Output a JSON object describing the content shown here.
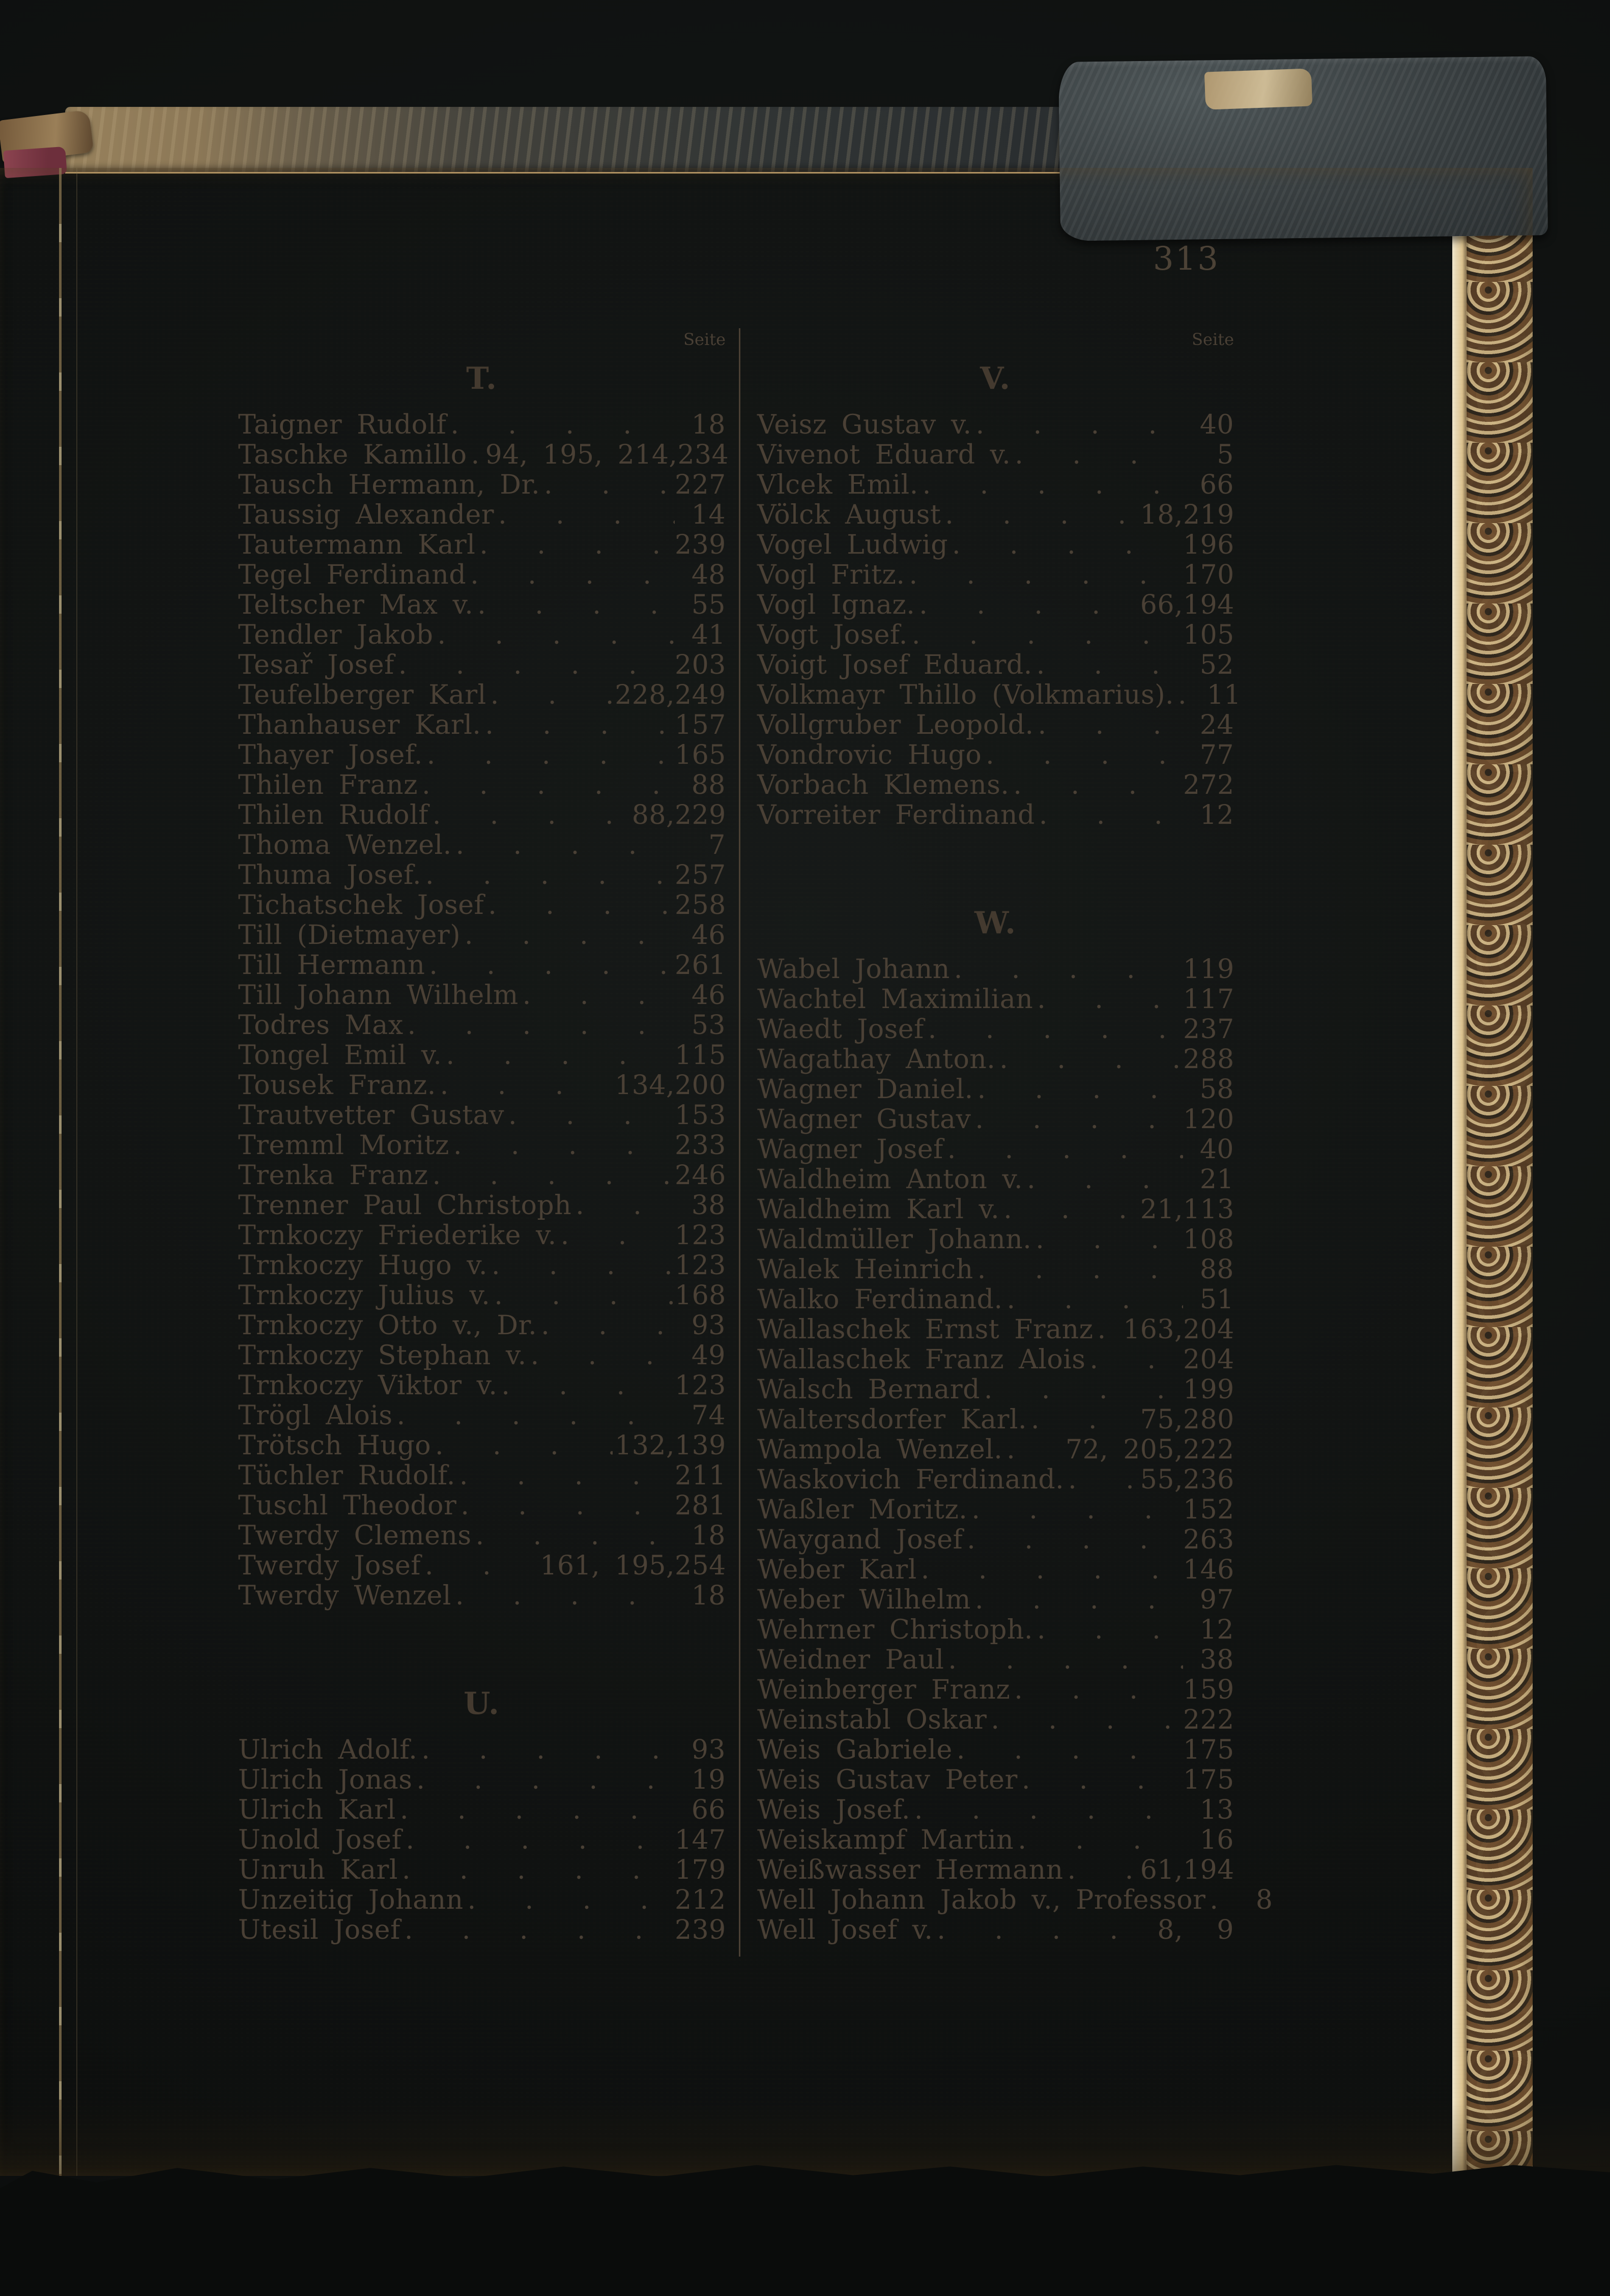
{
  "page": {
    "number": "313"
  },
  "labels": {
    "seite": "Seite"
  },
  "colors": {
    "ink": "#4a4035",
    "paper": "#e8dfc2",
    "paper_edge": "#f0e9d5",
    "cover_leather": "#2c3133",
    "marble_brown": "#8a6b47",
    "backdrop": "#121514"
  },
  "columns": [
    {
      "sections": [
        {
          "letter": "T.",
          "entries": [
            {
              "name": "Taigner Rudolf",
              "page": "18"
            },
            {
              "name": "Taschke Kamillo",
              "mid": "94, 195, 214,",
              "page": "234"
            },
            {
              "name": "Tausch Hermann, Dr.",
              "page": "227"
            },
            {
              "name": "Taussig Alexander",
              "page": "14"
            },
            {
              "name": "Tautermann Karl",
              "page": "239"
            },
            {
              "name": "Tegel Ferdinand",
              "page": "48"
            },
            {
              "name": "Teltscher Max v.",
              "page": "55"
            },
            {
              "name": "Tendler Jakob",
              "page": "41"
            },
            {
              "name": "Tesař Josef",
              "page": "203"
            },
            {
              "name": "Teufelberger Karl",
              "mid": "228,",
              "page": "249"
            },
            {
              "name": "Thanhauser Karl.",
              "page": "157"
            },
            {
              "name": "Thayer Josef.",
              "page": "165"
            },
            {
              "name": "Thilen Franz",
              "page": "88"
            },
            {
              "name": "Thilen Rudolf",
              "mid": "88,",
              "page": "229"
            },
            {
              "name": "Thoma Wenzel.",
              "page": "7"
            },
            {
              "name": "Thuma Josef.",
              "page": "257"
            },
            {
              "name": "Tichatschek Josef",
              "page": "258"
            },
            {
              "name": "Till (Dietmayer)",
              "page": "46"
            },
            {
              "name": "Till Hermann",
              "page": "261"
            },
            {
              "name": "Till Johann Wilhelm",
              "page": "46"
            },
            {
              "name": "Todres Max",
              "page": "53"
            },
            {
              "name": "Tongel Emil v.",
              "page": "115"
            },
            {
              "name": "Tousek Franz.",
              "mid": "134,",
              "page": "200"
            },
            {
              "name": "Trautvetter Gustav",
              "page": "153"
            },
            {
              "name": "Tremml Moritz",
              "page": "233"
            },
            {
              "name": "Trenka Franz",
              "page": "246"
            },
            {
              "name": "Trenner Paul Christoph",
              "page": "38"
            },
            {
              "name": "Trnkoczy Friederike v.",
              "page": "123"
            },
            {
              "name": "Trnkoczy Hugo v.",
              "page": "123"
            },
            {
              "name": "Trnkoczy Julius v.",
              "page": "168"
            },
            {
              "name": "Trnkoczy Otto v., Dr.",
              "page": "93"
            },
            {
              "name": "Trnkoczy Stephan v.",
              "page": "49"
            },
            {
              "name": "Trnkoczy Viktor v.",
              "page": "123"
            },
            {
              "name": "Trögl Alois",
              "page": "74"
            },
            {
              "name": "Trötsch Hugo",
              "mid": "132,",
              "page": "139"
            },
            {
              "name": "Tüchler Rudolf.",
              "page": "211"
            },
            {
              "name": "Tuschl Theodor",
              "page": "281"
            },
            {
              "name": "Twerdy Clemens",
              "page": "18"
            },
            {
              "name": "Twerdy Josef",
              "mid": "161, 195,",
              "page": "254"
            },
            {
              "name": "Twerdy Wenzel",
              "page": "18"
            }
          ]
        },
        {
          "letter": "U.",
          "entries": [
            {
              "name": "Ulrich Adolf.",
              "page": "93"
            },
            {
              "name": "Ulrich Jonas",
              "page": "19"
            },
            {
              "name": "Ulrich Karl",
              "page": "66"
            },
            {
              "name": "Unold Josef",
              "page": "147"
            },
            {
              "name": "Unruh Karl",
              "page": "179"
            },
            {
              "name": "Unzeitig Johann",
              "page": "212"
            },
            {
              "name": "Utesil Josef",
              "page": "239"
            }
          ]
        }
      ]
    },
    {
      "sections": [
        {
          "letter": "V.",
          "entries": [
            {
              "name": "Veisz Gustav v.",
              "page": "40"
            },
            {
              "name": "Vivenot Eduard v.",
              "page": "5"
            },
            {
              "name": "Vlcek Emil.",
              "page": "66"
            },
            {
              "name": "Völck August",
              "mid": "18,",
              "page": "219"
            },
            {
              "name": "Vogel Ludwig",
              "page": "196"
            },
            {
              "name": "Vogl Fritz.",
              "page": "170"
            },
            {
              "name": "Vogl Ignaz.",
              "mid": "66,",
              "page": "194"
            },
            {
              "name": "Vogt Josef.",
              "page": "105"
            },
            {
              "name": "Voigt Josef Eduard.",
              "page": "52"
            },
            {
              "name": "Volkmayr Thillo (Volkmarius).",
              "page": "11"
            },
            {
              "name": "Vollgruber Leopold.",
              "page": "24"
            },
            {
              "name": "Vondrovic Hugo",
              "page": "77"
            },
            {
              "name": "Vorbach Klemens.",
              "page": "272"
            },
            {
              "name": "Vorreiter Ferdinand",
              "page": "12"
            }
          ]
        },
        {
          "letter": "W.",
          "entries": [
            {
              "name": "Wabel Johann",
              "page": "119"
            },
            {
              "name": "Wachtel Maximilian",
              "page": "117"
            },
            {
              "name": "Waedt Josef",
              "page": "237"
            },
            {
              "name": "Wagathay Anton.",
              "page": "288"
            },
            {
              "name": "Wagner Daniel.",
              "page": "58"
            },
            {
              "name": "Wagner Gustav",
              "page": "120"
            },
            {
              "name": "Wagner Josef",
              "page": "40"
            },
            {
              "name": "Waldheim Anton v.",
              "page": "21"
            },
            {
              "name": "Waldheim Karl v.",
              "mid": "21,",
              "page": "113"
            },
            {
              "name": "Waldmüller Johann.",
              "page": "108"
            },
            {
              "name": "Walek Heinrich",
              "page": "88"
            },
            {
              "name": "Walko Ferdinand.",
              "page": "51"
            },
            {
              "name": "Wallaschek Ernst Franz",
              "mid": "163,",
              "page": "204"
            },
            {
              "name": "Wallaschek Franz Alois",
              "page": "204"
            },
            {
              "name": "Walsch Bernard",
              "page": "199"
            },
            {
              "name": "Waltersdorfer Karl.",
              "mid": "75,",
              "page": "280"
            },
            {
              "name": "Wampola Wenzel.",
              "mid": "72, 205,",
              "page": "222"
            },
            {
              "name": "Waskovich Ferdinand.",
              "mid": "55,",
              "page": "236"
            },
            {
              "name": "Waßler Moritz.",
              "page": "152"
            },
            {
              "name": "Waygand Josef",
              "page": "263"
            },
            {
              "name": "Weber Karl",
              "page": "146"
            },
            {
              "name": "Weber Wilhelm",
              "page": "97"
            },
            {
              "name": "Wehrner Christoph.",
              "page": "12"
            },
            {
              "name": "Weidner Paul",
              "page": "38"
            },
            {
              "name": "Weinberger Franz",
              "page": "159"
            },
            {
              "name": "Weinstabl Oskar",
              "page": "222"
            },
            {
              "name": "Weis Gabriele",
              "page": "175"
            },
            {
              "name": "Weis Gustav Peter",
              "page": "175"
            },
            {
              "name": "Weis Josef.",
              "page": "13"
            },
            {
              "name": "Weiskampf Martin",
              "page": "16"
            },
            {
              "name": "Weißwasser Hermann",
              "mid": "61,",
              "page": "194"
            },
            {
              "name": "Well Johann Jakob v., Professor",
              "page": "8"
            },
            {
              "name": "Well Josef v.",
              "mid": "8,",
              "page": "9"
            }
          ]
        }
      ]
    }
  ]
}
